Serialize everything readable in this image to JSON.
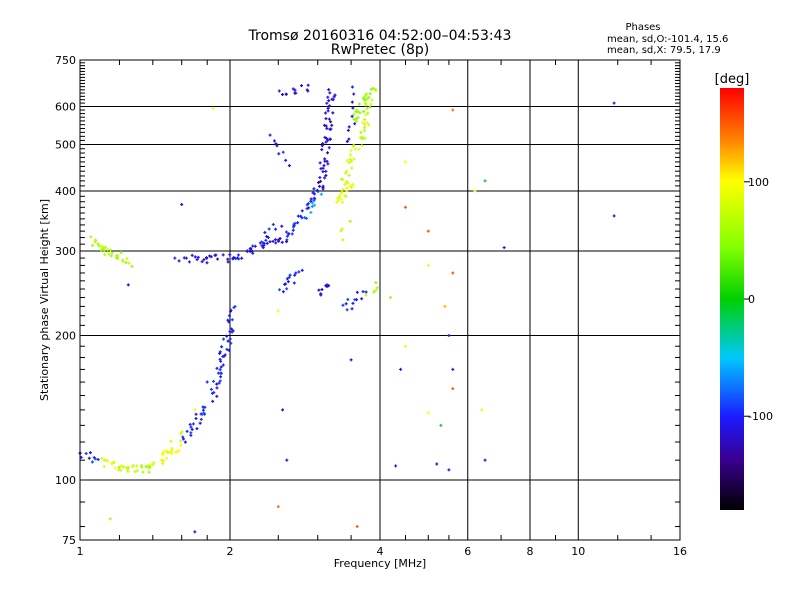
{
  "header": {
    "title_line1": "Tromsø 20160316 04:52:00–04:53:43",
    "title_line2": "RwPretec (8p)"
  },
  "phase_stats": {
    "heading": "Phases",
    "line_o": "mean, sd,O:-101.4, 15.6",
    "line_x": "mean, sd,X:  79.5, 17.9"
  },
  "colorbar": {
    "unit_label": "[deg]",
    "tick_labels": [
      "100",
      "0",
      "-100"
    ],
    "tick_values": [
      100,
      0,
      -100
    ],
    "range": [
      -180,
      180
    ]
  },
  "chart_data": {
    "type": "scatter",
    "xlabel": "Frequency [MHz]",
    "ylabel": "Stationary phase Virtual Height [km]",
    "x_scale": "log",
    "y_scale": "log",
    "xlim": [
      1,
      16
    ],
    "ylim": [
      75,
      750
    ],
    "x_ticks": [
      1,
      2,
      4,
      6,
      8,
      10,
      16
    ],
    "x_tick_labels": [
      "1",
      "2",
      "4",
      "6",
      "8",
      "10",
      "16"
    ],
    "y_ticks": [
      75,
      100,
      200,
      300,
      400,
      500,
      600,
      750
    ],
    "y_tick_labels": [
      "75",
      "100",
      "200",
      "300",
      "400",
      "500",
      "600",
      "750"
    ],
    "grid": true,
    "legend": "colorbar-right",
    "point_groups": [
      {
        "f": [
          1.0,
          1.1
        ],
        "h": [
          114,
          110
        ],
        "phase": -100,
        "n": 10
      },
      {
        "f": [
          1.1,
          1.2
        ],
        "h": [
          110,
          106
        ],
        "phase": 95,
        "n": 12
      },
      {
        "f": [
          1.2,
          1.4
        ],
        "h": [
          106,
          105
        ],
        "phase": 70,
        "n": 22
      },
      {
        "f": [
          1.4,
          1.6
        ],
        "h": [
          107,
          118
        ],
        "phase": 90,
        "n": 14
      },
      {
        "f": [
          1.45,
          1.6
        ],
        "h": [
          110,
          125
        ],
        "phase": 85,
        "n": 10
      },
      {
        "f": [
          1.6,
          1.8
        ],
        "h": [
          120,
          140
        ],
        "phase": -95,
        "n": 14
      },
      {
        "f": [
          1.65,
          1.85
        ],
        "h": [
          125,
          150
        ],
        "phase": -100,
        "n": 10
      },
      {
        "f": [
          1.85,
          2.05
        ],
        "h": [
          150,
          230
        ],
        "phase": -100,
        "n": 35
      },
      {
        "f": [
          1.9,
          2.0
        ],
        "h": [
          160,
          200
        ],
        "phase": -95,
        "n": 8
      },
      {
        "f": [
          1.06,
          1.25
        ],
        "h": [
          315,
          283
        ],
        "phase": 65,
        "n": 30
      },
      {
        "f": [
          1.6,
          2.0
        ],
        "h": [
          288,
          290
        ],
        "phase": -110,
        "n": 22
      },
      {
        "f": [
          2.0,
          2.6
        ],
        "h": [
          290,
          320
        ],
        "phase": -110,
        "n": 35
      },
      {
        "f": [
          2.6,
          3.0
        ],
        "h": [
          320,
          400
        ],
        "phase": -100,
        "n": 25
      },
      {
        "f": [
          2.8,
          3.05
        ],
        "h": [
          350,
          400
        ],
        "phase": -70,
        "n": 10
      },
      {
        "f": [
          3.05,
          3.2
        ],
        "h": [
          400,
          650
        ],
        "phase": -115,
        "n": 55
      },
      {
        "f": [
          2.5,
          2.9
        ],
        "h": [
          640,
          655
        ],
        "phase": -110,
        "n": 12
      },
      {
        "f": [
          2.45,
          2.6
        ],
        "h": [
          520,
          460
        ],
        "phase": -105,
        "n": 8
      },
      {
        "f": [
          2.3,
          2.5
        ],
        "h": [
          310,
          340
        ],
        "phase": -100,
        "n": 10
      },
      {
        "f": [
          3.3,
          3.5
        ],
        "h": [
          380,
          420
        ],
        "phase": 85,
        "n": 20
      },
      {
        "f": [
          3.4,
          3.75
        ],
        "h": [
          420,
          560
        ],
        "phase": 80,
        "n": 30
      },
      {
        "f": [
          3.55,
          3.85
        ],
        "h": [
          560,
          650
        ],
        "phase": 55,
        "n": 22
      },
      {
        "f": [
          3.75,
          3.9
        ],
        "h": [
          560,
          650
        ],
        "phase": 70,
        "n": 10
      },
      {
        "f": [
          3.45,
          3.55
        ],
        "h": [
          500,
          650
        ],
        "phase": -110,
        "n": 10
      },
      {
        "f": [
          2.55,
          2.75
        ],
        "h": [
          250,
          270
        ],
        "phase": -100,
        "n": 14
      },
      {
        "f": [
          3.0,
          3.2
        ],
        "h": [
          245,
          255
        ],
        "phase": -110,
        "n": 10
      },
      {
        "f": [
          3.4,
          3.7
        ],
        "h": [
          225,
          250
        ],
        "phase": -100,
        "n": 12
      },
      {
        "f": [
          3.8,
          4.0
        ],
        "h": [
          245,
          255
        ],
        "phase": 60,
        "n": 6
      },
      {
        "f": [
          3.35,
          3.45
        ],
        "h": [
          320,
          340
        ],
        "phase": 65,
        "n": 4
      }
    ],
    "points": [
      {
        "f": 1.85,
        "h": 595,
        "phase": 90
      },
      {
        "f": 1.6,
        "h": 375,
        "phase": -110
      },
      {
        "f": 1.55,
        "h": 290,
        "phase": -100
      },
      {
        "f": 1.25,
        "h": 255,
        "phase": -120
      },
      {
        "f": 1.8,
        "h": 160,
        "phase": -100
      },
      {
        "f": 1.7,
        "h": 140,
        "phase": 95
      },
      {
        "f": 1.15,
        "h": 83,
        "phase": 60
      },
      {
        "f": 1.7,
        "h": 78,
        "phase": -120
      },
      {
        "f": 2.5,
        "h": 88,
        "phase": 140
      },
      {
        "f": 2.55,
        "h": 140,
        "phase": -110
      },
      {
        "f": 2.6,
        "h": 110,
        "phase": -100
      },
      {
        "f": 2.5,
        "h": 225,
        "phase": 100
      },
      {
        "f": 3.5,
        "h": 178,
        "phase": -120
      },
      {
        "f": 3.6,
        "h": 80,
        "phase": 150
      },
      {
        "f": 4.3,
        "h": 107,
        "phase": -110
      },
      {
        "f": 4.4,
        "h": 170,
        "phase": -100
      },
      {
        "f": 4.5,
        "h": 190,
        "phase": 95
      },
      {
        "f": 4.5,
        "h": 370,
        "phase": 150
      },
      {
        "f": 4.5,
        "h": 460,
        "phase": 100
      },
      {
        "f": 5.0,
        "h": 330,
        "phase": 150
      },
      {
        "f": 5.0,
        "h": 280,
        "phase": 95
      },
      {
        "f": 5.3,
        "h": 130,
        "phase": -10
      },
      {
        "f": 5.2,
        "h": 108,
        "phase": -110
      },
      {
        "f": 5.5,
        "h": 200,
        "phase": -100
      },
      {
        "f": 5.6,
        "h": 155,
        "phase": 150
      },
      {
        "f": 5.6,
        "h": 270,
        "phase": 150
      },
      {
        "f": 5.6,
        "h": 590,
        "phase": 140
      },
      {
        "f": 5.0,
        "h": 138,
        "phase": 100
      },
      {
        "f": 5.5,
        "h": 105,
        "phase": -100
      },
      {
        "f": 5.6,
        "h": 170,
        "phase": -110
      },
      {
        "f": 5.4,
        "h": 230,
        "phase": 120
      },
      {
        "f": 6.2,
        "h": 400,
        "phase": 80
      },
      {
        "f": 6.5,
        "h": 420,
        "phase": -10
      },
      {
        "f": 6.5,
        "h": 110,
        "phase": -110
      },
      {
        "f": 6.4,
        "h": 140,
        "phase": 90
      },
      {
        "f": 7.1,
        "h": 305,
        "phase": -110
      },
      {
        "f": 4.2,
        "h": 240,
        "phase": 60
      },
      {
        "f": 11.8,
        "h": 610,
        "phase": -110
      },
      {
        "f": 11.8,
        "h": 355,
        "phase": -120
      }
    ]
  }
}
